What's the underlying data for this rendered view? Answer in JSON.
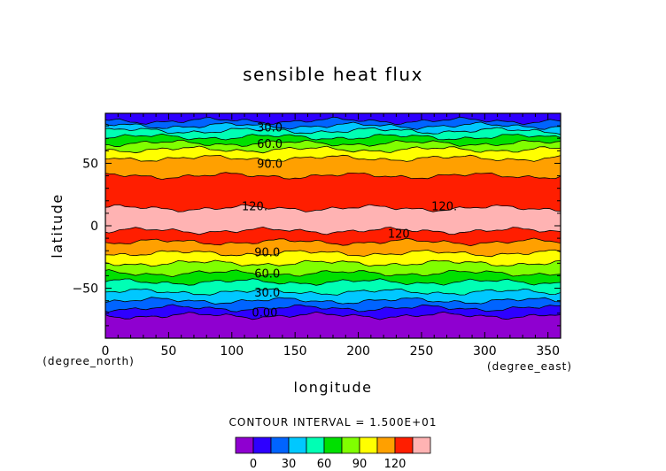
{
  "chart_data": {
    "type": "heatmap",
    "title": "sensible heat flux",
    "xlabel": "longitude",
    "ylabel": "latitude",
    "x_unit": "(degree_east)",
    "y_unit": "(degree_north)",
    "xlim": [
      0,
      360
    ],
    "ylim": [
      -90,
      90
    ],
    "x_ticks": [
      0,
      50,
      100,
      150,
      200,
      250,
      300,
      350
    ],
    "y_ticks": [
      -50,
      0,
      50
    ],
    "contour_interval": "CONTOUR INTERVAL = 1.500E+01",
    "contour_labels": [
      {
        "text": "30.0",
        "lon": 130,
        "lat": 79
      },
      {
        "text": "60.0",
        "lon": 130,
        "lat": 66
      },
      {
        "text": "90.0",
        "lon": 130,
        "lat": 50
      },
      {
        "text": "120.",
        "lon": 118,
        "lat": 16
      },
      {
        "text": "120.",
        "lon": 268,
        "lat": 16
      },
      {
        "text": "120",
        "lon": 232,
        "lat": -6
      },
      {
        "text": "90.0",
        "lon": 128,
        "lat": -21
      },
      {
        "text": "60.0",
        "lon": 128,
        "lat": -38
      },
      {
        "text": "30.0",
        "lon": 128,
        "lat": -53
      },
      {
        "text": "0.00",
        "lon": 126,
        "lat": -69
      }
    ],
    "levels": [
      -15,
      0,
      15,
      30,
      45,
      60,
      75,
      90,
      105,
      120,
      135
    ],
    "colors": [
      "#8f00d0",
      "#2e00ff",
      "#0064ff",
      "#00c8ff",
      "#00ffb4",
      "#00e000",
      "#80ff00",
      "#ffff00",
      "#ffa000",
      "#ff1e00",
      "#ffb3b3"
    ],
    "colorbar_ticks": [
      0,
      30,
      60,
      90,
      120
    ],
    "bands": [
      {
        "lat_min": -90,
        "lat_max": -72,
        "level": 0
      },
      {
        "lat_min": -72,
        "lat_max": -66,
        "level": 1
      },
      {
        "lat_min": -66,
        "lat_max": -60,
        "level": 2
      },
      {
        "lat_min": -60,
        "lat_max": -53,
        "level": 3
      },
      {
        "lat_min": -53,
        "lat_max": -45,
        "level": 4
      },
      {
        "lat_min": -45,
        "lat_max": -38,
        "level": 5
      },
      {
        "lat_min": -38,
        "lat_max": -30,
        "level": 6
      },
      {
        "lat_min": -30,
        "lat_max": -22,
        "level": 7
      },
      {
        "lat_min": -22,
        "lat_max": -13,
        "level": 8
      },
      {
        "lat_min": -13,
        "lat_max": -4,
        "level": 9
      },
      {
        "lat_min": -4,
        "lat_max": 14,
        "level": 10
      },
      {
        "lat_min": 14,
        "lat_max": 40,
        "level": 9
      },
      {
        "lat_min": 40,
        "lat_max": 54,
        "level": 8
      },
      {
        "lat_min": 54,
        "lat_max": 61,
        "level": 7
      },
      {
        "lat_min": 61,
        "lat_max": 66,
        "level": 6
      },
      {
        "lat_min": 66,
        "lat_max": 71,
        "level": 5
      },
      {
        "lat_min": 71,
        "lat_max": 76,
        "level": 4
      },
      {
        "lat_min": 76,
        "lat_max": 80,
        "level": 3
      },
      {
        "lat_min": 80,
        "lat_max": 84,
        "level": 2
      },
      {
        "lat_min": 84,
        "lat_max": 90,
        "level": 1
      }
    ]
  }
}
